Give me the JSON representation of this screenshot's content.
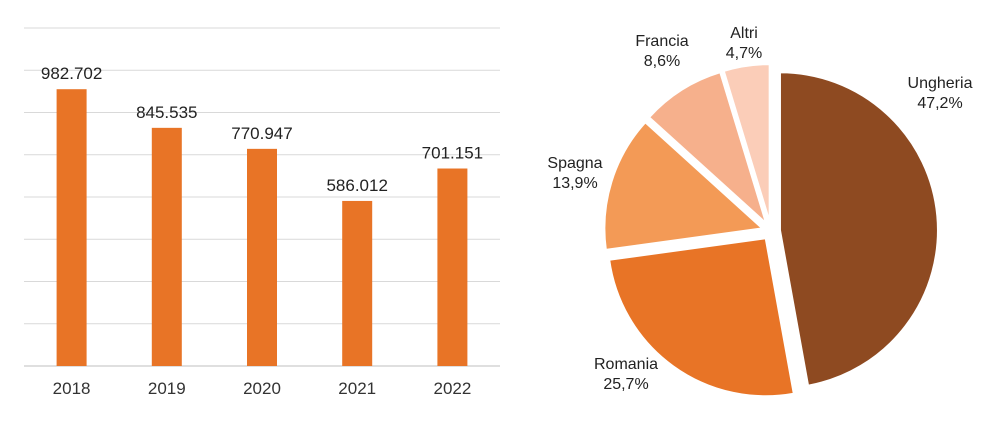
{
  "chart_data": [
    {
      "type": "bar",
      "categories": [
        "2018",
        "2019",
        "2020",
        "2021",
        "2022"
      ],
      "values": [
        982702,
        845535,
        770947,
        586012,
        701151
      ],
      "labels": [
        "982.702",
        "845.535",
        "770.947",
        "586.012",
        "701.151"
      ],
      "title": "",
      "xlabel": "",
      "ylabel": "",
      "ylim": [
        0,
        1200000
      ],
      "grid": true,
      "color": "#E87426"
    },
    {
      "type": "pie",
      "title": "",
      "slices": [
        {
          "name": "Ungheria",
          "value": 47.2,
          "label": "47,2%",
          "color": "#8E4A21"
        },
        {
          "name": "Romania",
          "value": 25.7,
          "label": "25,7%",
          "color": "#E87426"
        },
        {
          "name": "Spagna",
          "value": 13.9,
          "label": "13,9%",
          "color": "#F39A56"
        },
        {
          "name": "Francia",
          "value": 8.6,
          "label": "8,6%",
          "color": "#F6B08C"
        },
        {
          "name": "Altri",
          "value": 4.7,
          "label": "4,7%",
          "color": "#FBCDB8"
        }
      ]
    }
  ]
}
